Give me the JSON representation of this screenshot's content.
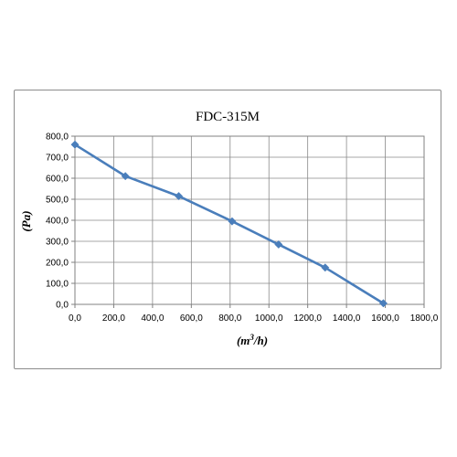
{
  "chart_data": {
    "type": "line",
    "title": "FDC-315M",
    "xlabel_base": "(m",
    "xlabel_sup": "3",
    "xlabel_tail": "/h)",
    "ylabel": "(Pa)",
    "xlim": [
      0,
      1800
    ],
    "ylim": [
      0,
      800
    ],
    "x_ticks": [
      0,
      200,
      400,
      600,
      800,
      1000,
      1200,
      1400,
      1600,
      1800
    ],
    "y_ticks": [
      0,
      100,
      200,
      300,
      400,
      500,
      600,
      700,
      800
    ],
    "x_tick_labels": [
      "0,0",
      "200,0",
      "400,0",
      "600,0",
      "800,0",
      "1000,0",
      "1200,0",
      "1400,0",
      "1600,0",
      "1800,0"
    ],
    "y_tick_labels": [
      "0,0",
      "100,0",
      "200,0",
      "300,0",
      "400,0",
      "500,0",
      "600,0",
      "700,0",
      "800,0"
    ],
    "grid": true,
    "legend": false,
    "series": [
      {
        "color": "#4a7ebb",
        "x": [
          0,
          260,
          535,
          810,
          1050,
          1290,
          1590
        ],
        "y": [
          760,
          610,
          515,
          395,
          285,
          175,
          5
        ]
      }
    ]
  }
}
